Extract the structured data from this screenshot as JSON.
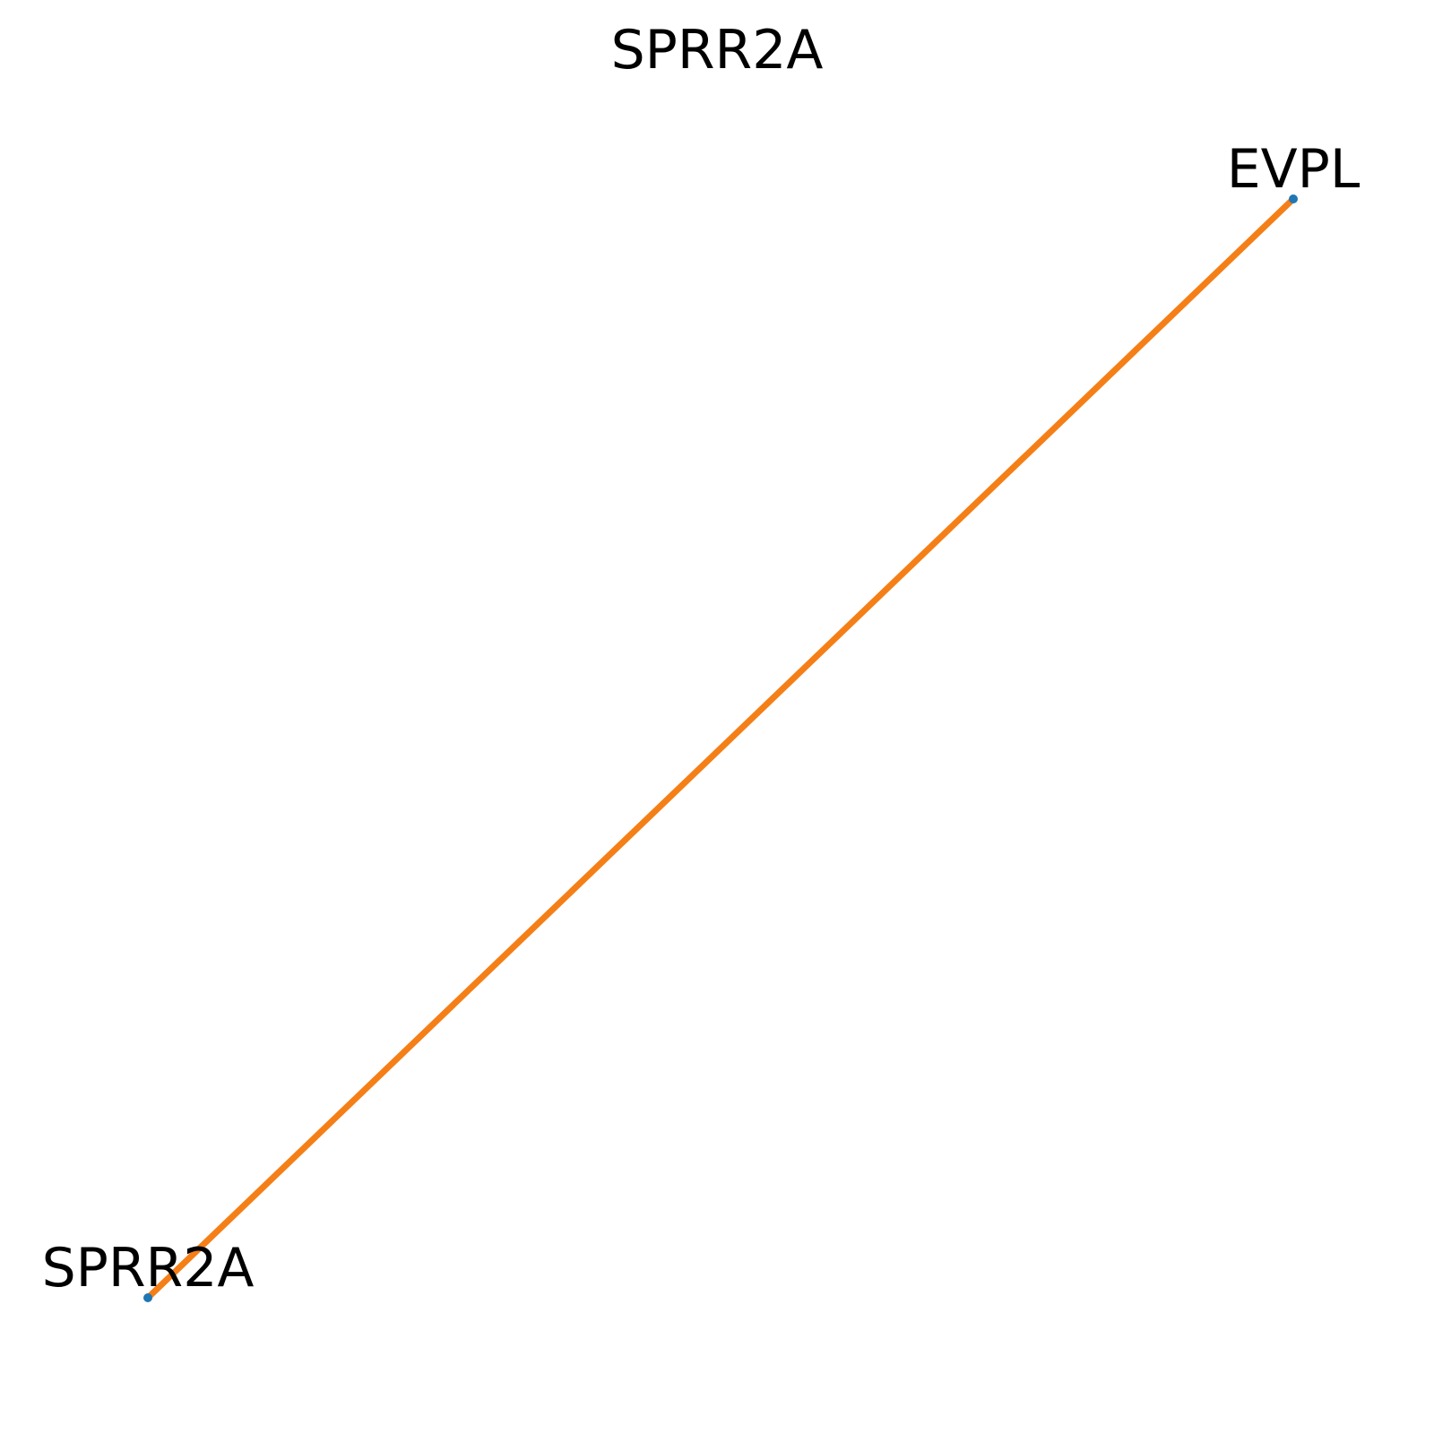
{
  "title": "SPRR2A",
  "colors": {
    "edge": "#f57f17",
    "node": "#1f77b4",
    "text": "#000000",
    "background": "#ffffff"
  },
  "nodes": [
    {
      "id": "EVPL",
      "label": "EVPL"
    },
    {
      "id": "SPRR2A",
      "label": "SPRR2A"
    }
  ],
  "edges": [
    {
      "source": "SPRR2A",
      "target": "EVPL"
    }
  ]
}
